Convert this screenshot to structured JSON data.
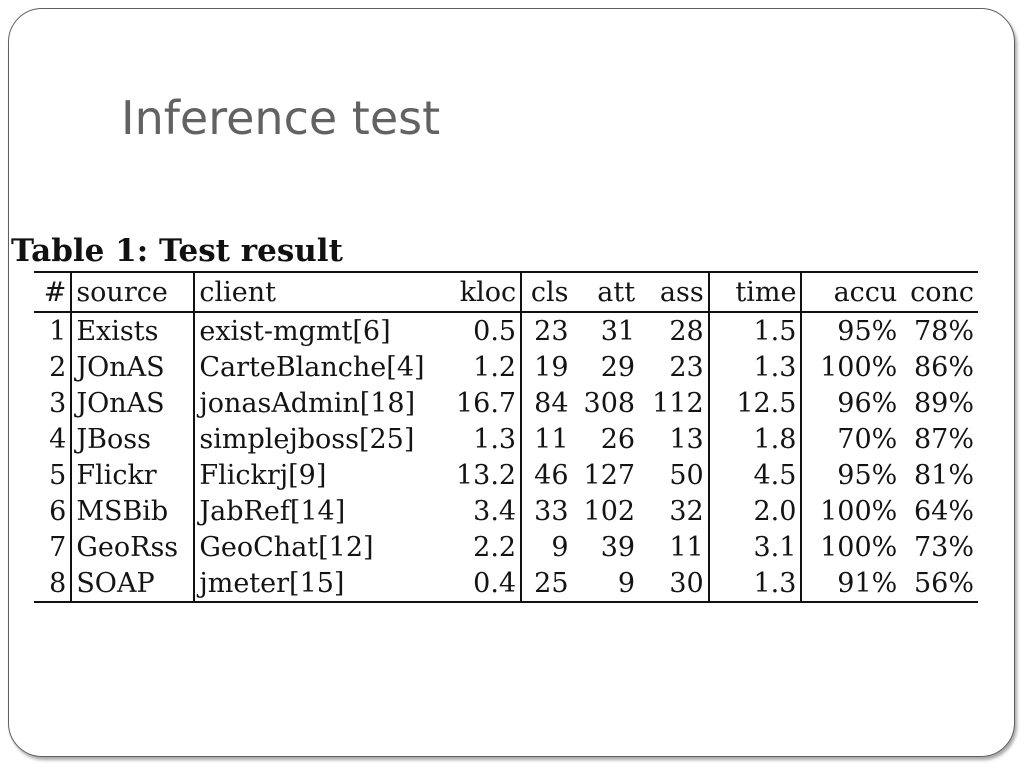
{
  "slide": {
    "title": "Inference test"
  },
  "table": {
    "caption": "Table 1:  Test result",
    "headers": {
      "num": "#",
      "source": "source",
      "client": "client",
      "kloc": "kloc",
      "cls": "cls",
      "att": "att",
      "ass": "ass",
      "time": "time",
      "accu": "accu",
      "conc": "conc"
    },
    "rows": [
      {
        "num": "1",
        "source": "Exists",
        "client": "exist-mgmt[6]",
        "kloc": "0.5",
        "cls": "23",
        "att": "31",
        "ass": "28",
        "time": "1.5",
        "accu": "95%",
        "conc": "78%"
      },
      {
        "num": "2",
        "source": "JOnAS",
        "client": "CarteBlanche[4]",
        "kloc": "1.2",
        "cls": "19",
        "att": "29",
        "ass": "23",
        "time": "1.3",
        "accu": "100%",
        "conc": "86%"
      },
      {
        "num": "3",
        "source": "JOnAS",
        "client": "jonasAdmin[18]",
        "kloc": "16.7",
        "cls": "84",
        "att": "308",
        "ass": "112",
        "time": "12.5",
        "accu": "96%",
        "conc": "89%"
      },
      {
        "num": "4",
        "source": "JBoss",
        "client": "simplejboss[25]",
        "kloc": "1.3",
        "cls": "11",
        "att": "26",
        "ass": "13",
        "time": "1.8",
        "accu": "70%",
        "conc": "87%"
      },
      {
        "num": "5",
        "source": "Flickr",
        "client": "Flickrj[9]",
        "kloc": "13.2",
        "cls": "46",
        "att": "127",
        "ass": "50",
        "time": "4.5",
        "accu": "95%",
        "conc": "81%"
      },
      {
        "num": "6",
        "source": "MSBib",
        "client": "JabRef[14]",
        "kloc": "3.4",
        "cls": "33",
        "att": "102",
        "ass": "32",
        "time": "2.0",
        "accu": "100%",
        "conc": "64%"
      },
      {
        "num": "7",
        "source": "GeoRss",
        "client": "GeoChat[12]",
        "kloc": "2.2",
        "cls": "9",
        "att": "39",
        "ass": "11",
        "time": "3.1",
        "accu": "100%",
        "conc": "73%"
      },
      {
        "num": "8",
        "source": "SOAP",
        "client": "jmeter[15]",
        "kloc": "0.4",
        "cls": "25",
        "att": "9",
        "ass": "30",
        "time": "1.3",
        "accu": "91%",
        "conc": "56%"
      }
    ]
  }
}
